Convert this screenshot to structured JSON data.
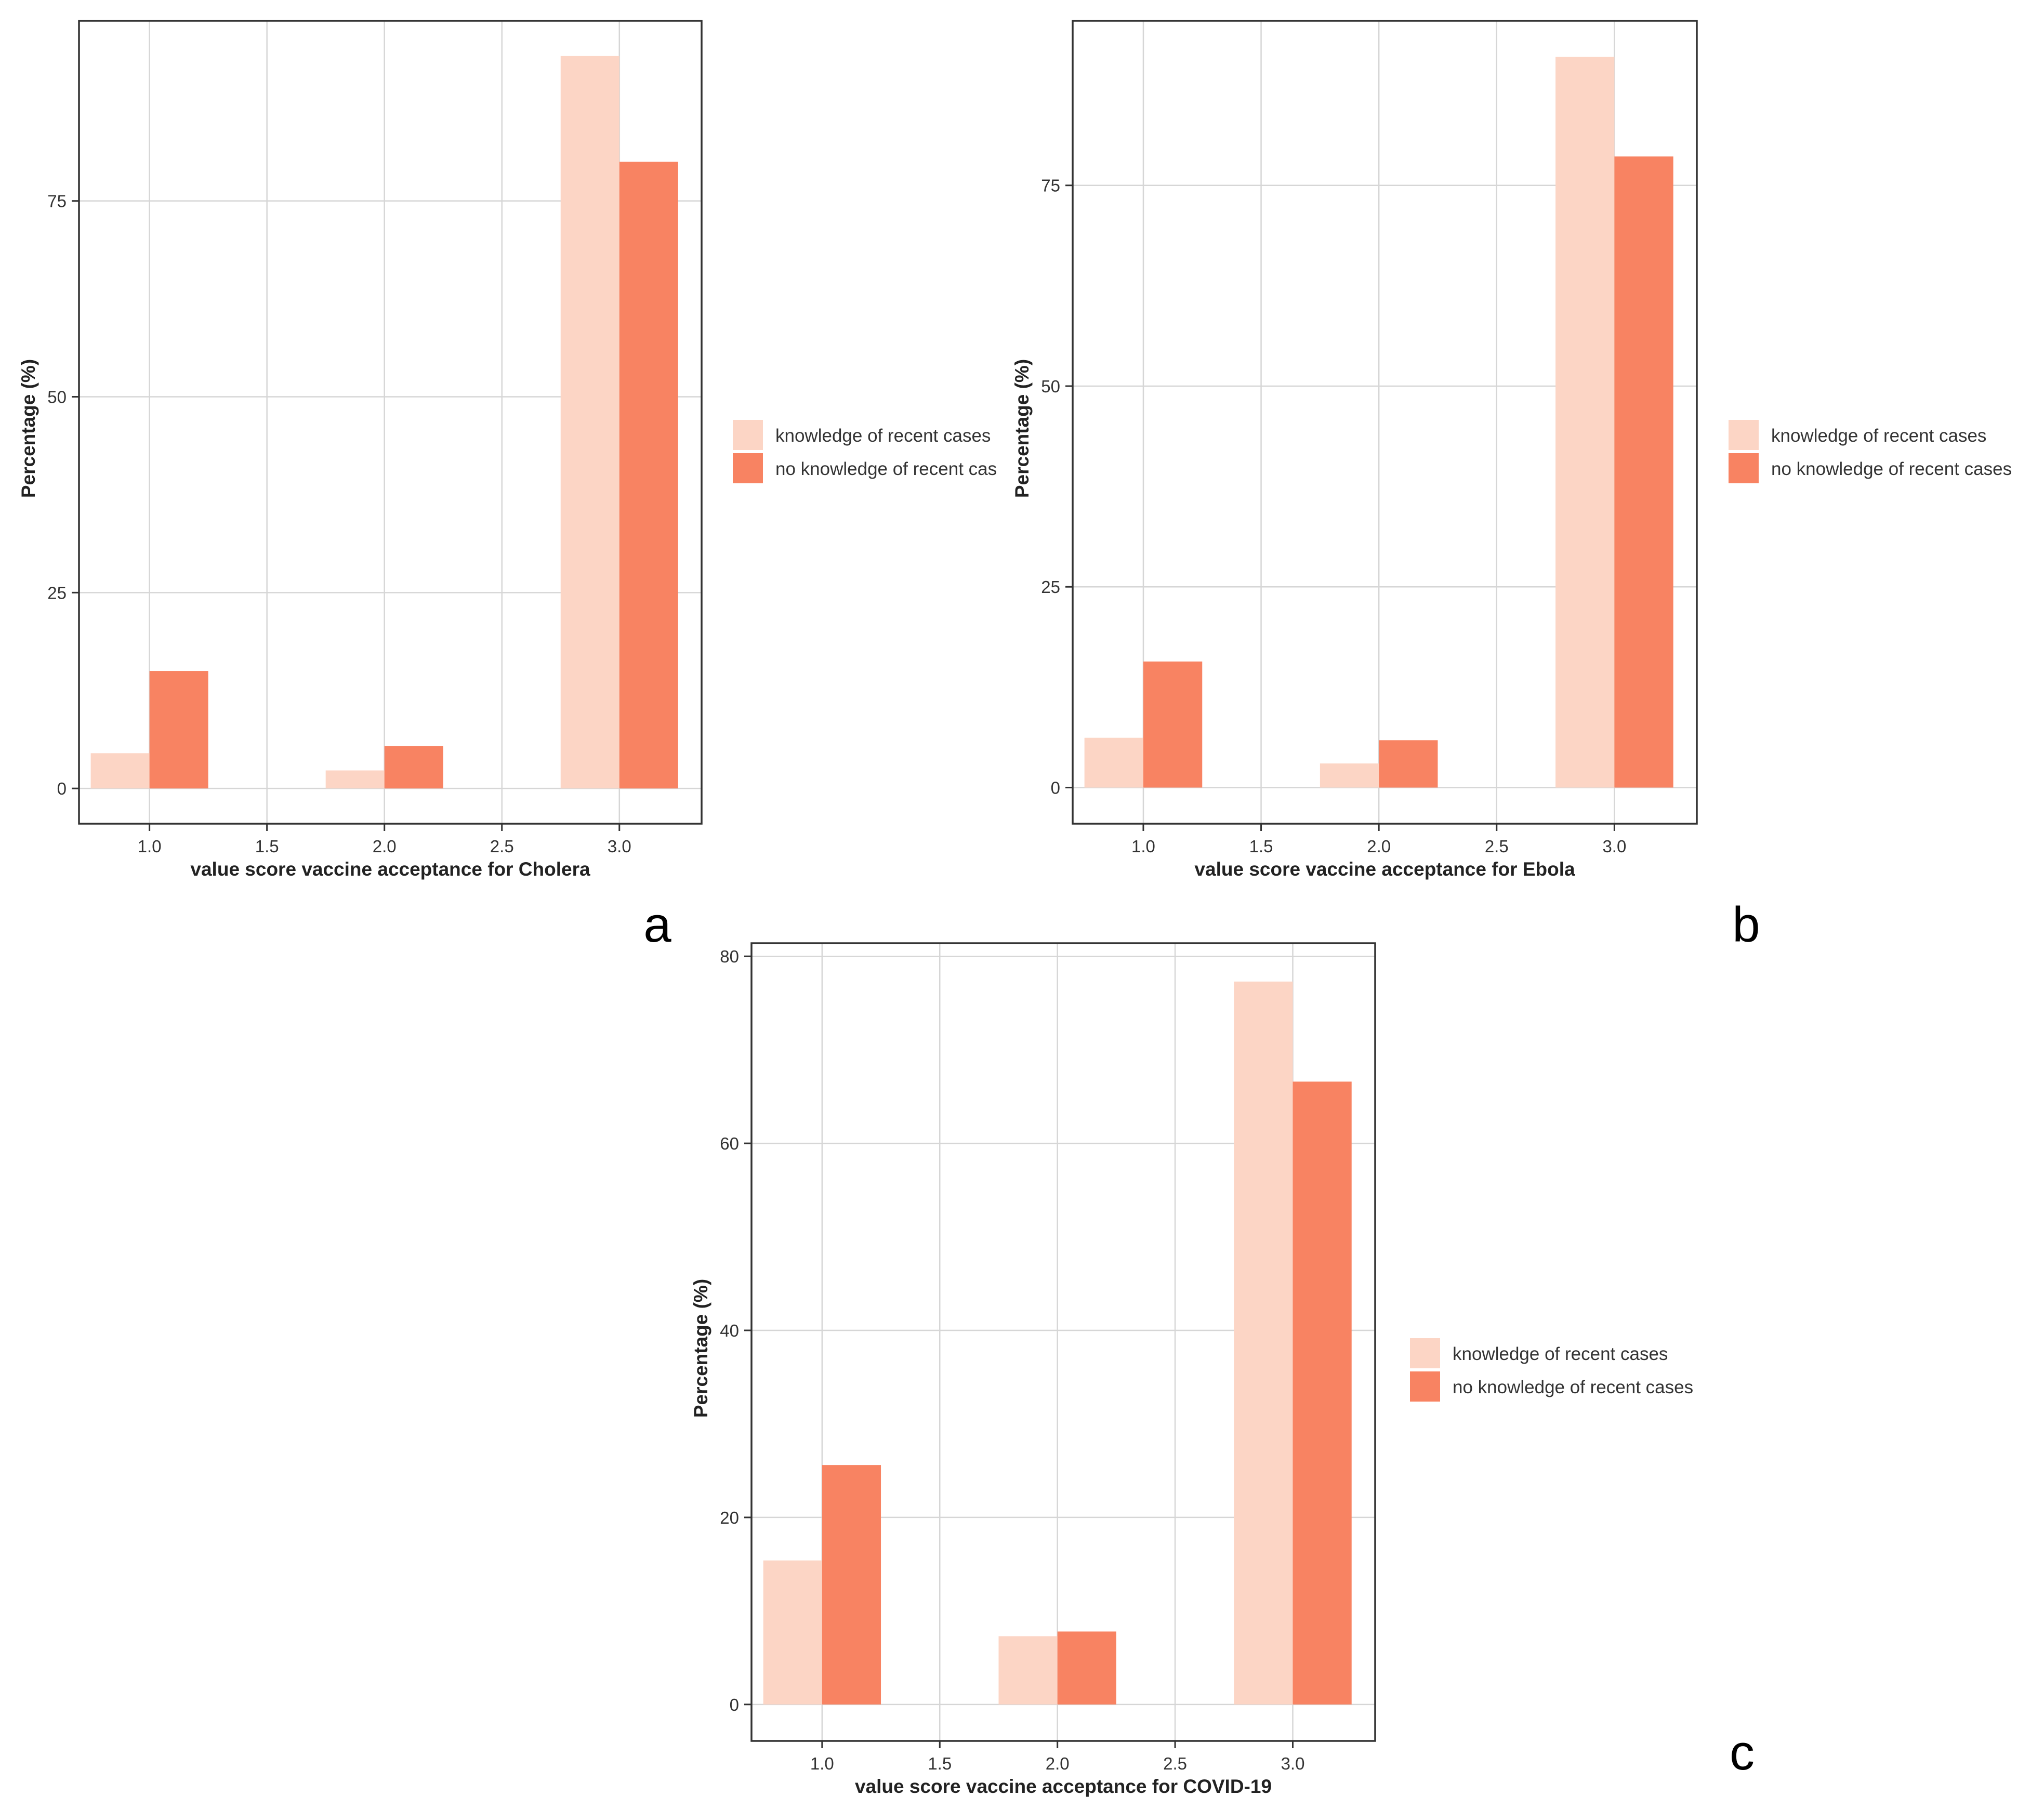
{
  "colors": {
    "knowledge": "#fcd5c5",
    "no_knowledge": "#f88362",
    "grid": "#d6d6d6",
    "panel_border": "#333333"
  },
  "chart_data": [
    {
      "type": "bar",
      "panel_label": "a",
      "xlabel": "value score vaccine acceptance for Cholera",
      "ylabel": "Percentage (%)",
      "x": [
        1.0,
        2.0,
        3.0
      ],
      "xlim": [
        0.7,
        3.35
      ],
      "ylim": [
        -4.5,
        98
      ],
      "x_ticks": [
        "1.0",
        "1.5",
        "2.0",
        "2.5",
        "3.0"
      ],
      "y_ticks": [
        "0",
        "25",
        "50",
        "75"
      ],
      "grid": true,
      "legend_position": "right",
      "series": [
        {
          "name": "knowledge of recent cases",
          "values": [
            4.5,
            2.3,
            93.5
          ]
        },
        {
          "name": "no knowledge of recent cas",
          "values": [
            15.0,
            5.4,
            80.0
          ]
        }
      ]
    },
    {
      "type": "bar",
      "panel_label": "b",
      "xlabel": "value score vaccine acceptance for Ebola",
      "ylabel": "Percentage (%)",
      "x": [
        1.0,
        2.0,
        3.0
      ],
      "xlim": [
        0.7,
        3.35
      ],
      "ylim": [
        -4.5,
        95.5
      ],
      "x_ticks": [
        "1.0",
        "1.5",
        "2.0",
        "2.5",
        "3.0"
      ],
      "y_ticks": [
        "0",
        "25",
        "50",
        "75"
      ],
      "grid": true,
      "legend_position": "right",
      "series": [
        {
          "name": "knowledge of recent cases",
          "values": [
            6.2,
            3.0,
            91.0
          ]
        },
        {
          "name": "no knowledge of recent cases",
          "values": [
            15.7,
            5.9,
            78.6
          ]
        }
      ]
    },
    {
      "type": "bar",
      "panel_label": "c",
      "xlabel": "value score vaccine acceptance for COVID-19",
      "ylabel": "Percentage (%)",
      "x": [
        1.0,
        2.0,
        3.0
      ],
      "xlim": [
        0.7,
        3.35
      ],
      "ylim": [
        -3.9,
        81.4
      ],
      "x_ticks": [
        "1.0",
        "1.5",
        "2.0",
        "2.5",
        "3.0"
      ],
      "y_ticks": [
        "0",
        "20",
        "40",
        "60",
        "80"
      ],
      "grid": true,
      "legend_position": "right",
      "series": [
        {
          "name": "knowledge of recent cases",
          "values": [
            15.4,
            7.3,
            77.3
          ]
        },
        {
          "name": "no knowledge of recent cases",
          "values": [
            25.6,
            7.8,
            66.6
          ]
        }
      ]
    }
  ]
}
